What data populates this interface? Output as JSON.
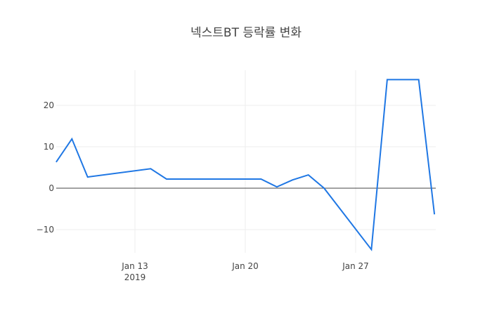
{
  "chart_data": {
    "type": "line",
    "title": "넥스트BT 등락률 변화",
    "xlabel": "",
    "ylabel": "",
    "x": [
      "2019-01-08",
      "2019-01-09",
      "2019-01-10",
      "2019-01-14",
      "2019-01-15",
      "2019-01-16",
      "2019-01-17",
      "2019-01-18",
      "2019-01-21",
      "2019-01-22",
      "2019-01-23",
      "2019-01-24",
      "2019-01-25",
      "2019-01-28",
      "2019-01-29",
      "2019-01-30",
      "2019-01-31",
      "2019-02-01"
    ],
    "series": [
      {
        "name": "등락률",
        "color": "#1f77e4",
        "values": [
          6.3,
          11.9,
          2.7,
          4.7,
          2.2,
          2.2,
          2.2,
          2.2,
          2.2,
          0.3,
          2.0,
          3.2,
          0.0,
          -14.8,
          26.2,
          26.2,
          26.2,
          -6.3
        ]
      }
    ],
    "x_ticks": [
      {
        "label": "Jan 13",
        "sublabel": "2019",
        "date": "2019-01-13"
      },
      {
        "label": "Jan 20",
        "sublabel": "",
        "date": "2019-01-20"
      },
      {
        "label": "Jan 27",
        "sublabel": "",
        "date": "2019-01-27"
      }
    ],
    "y_ticks": [
      20,
      10,
      0,
      -10
    ],
    "y_tick_labels": [
      "20",
      "10",
      "0",
      "−10"
    ],
    "ylim": [
      -16,
      30
    ],
    "grid": true,
    "legend": "none"
  },
  "colors": {
    "line": "#1f77e4",
    "grid": "#eeeeee",
    "zero_line": "#444444",
    "text": "#444444"
  }
}
